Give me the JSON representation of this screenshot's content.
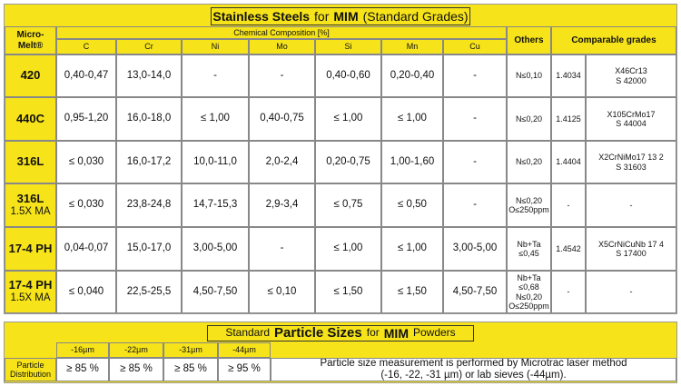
{
  "table1": {
    "title": {
      "main": "Stainless Steels",
      "for": "for",
      "brand": "MIM",
      "note": "(Standard Grades)"
    },
    "grade_header": "Micro-Melt®",
    "composition_header": "Chemical Composition [%]",
    "columns": [
      "C",
      "Cr",
      "Ni",
      "Mo",
      "Si",
      "Mn",
      "Cu",
      "Others",
      "Comparable grades"
    ],
    "rows": [
      {
        "grade": "420",
        "values": [
          "0,40-0,47",
          "13,0-14,0",
          "-",
          "-",
          "0,40-0,60",
          "0,20-0,40",
          "-"
        ],
        "others": [
          "N≤0,10"
        ],
        "code": "1.4034",
        "designation": [
          "X46Cr13",
          "S 42000"
        ]
      },
      {
        "grade": "440C",
        "values": [
          "0,95-1,20",
          "16,0-18,0",
          "≤ 1,00",
          "0,40-0,75",
          "≤ 1,00",
          "≤ 1,00",
          "-"
        ],
        "others": [
          "N≤0,20"
        ],
        "code": "1.4125",
        "designation": [
          "X105CrMo17",
          "S 44004"
        ]
      },
      {
        "grade": "316L",
        "values": [
          "≤ 0,030",
          "16,0-17,2",
          "10,0-11,0",
          "2,0-2,4",
          "0,20-0,75",
          "1,00-1,60",
          "-"
        ],
        "others": [
          "N≤0,20"
        ],
        "code": "1.4404",
        "designation": [
          "X2CrNiMo17 13 2",
          "S 31603"
        ]
      },
      {
        "grade": "316L",
        "sub": "1.5X MA",
        "values": [
          "≤ 0,030",
          "23,8-24,8",
          "14,7-15,3",
          "2,9-3,4",
          "≤ 0,75",
          "≤ 0,50",
          "-"
        ],
        "others": [
          "N≤0,20",
          "O≤250ppm"
        ],
        "code": "-",
        "designation": [
          "-"
        ]
      },
      {
        "grade": "17-4 PH",
        "values": [
          "0,04-0,07",
          "15,0-17,0",
          "3,00-5,00",
          "-",
          "≤ 1,00",
          "≤ 1,00",
          "3,00-5,00"
        ],
        "others": [
          "Nb+Ta",
          "≤0,45"
        ],
        "code": "1.4542",
        "designation": [
          "X5CrNiCuNb 17 4",
          "S 17400"
        ]
      },
      {
        "grade": "17-4 PH",
        "sub": "1.5X MA",
        "values": [
          "≤ 0,040",
          "22,5-25,5",
          "4,50-7,50",
          "≤ 0,10",
          "≤ 1,50",
          "≤ 1,50",
          "4,50-7,50"
        ],
        "others": [
          "Nb+Ta",
          "≤0,68",
          "N≤0,20",
          "O≤250ppm"
        ],
        "code": "-",
        "designation": [
          "-"
        ]
      }
    ]
  },
  "table2": {
    "title": {
      "pre": "Standard",
      "main": "Particle Sizes",
      "for": "for",
      "brand": "MIM",
      "post": "Powders"
    },
    "columns": [
      "-16µm",
      "-22µm",
      "-31µm",
      "-44µm"
    ],
    "row_label": "Particle Distribution",
    "values": [
      "≥ 85 %",
      "≥ 85 %",
      "≥ 85 %",
      "≥ 95 %"
    ],
    "note": [
      "Particle size measurement is performed by Microtrac laser method",
      "(-16, -22, -31 µm) or lab sieves (-44µm)."
    ]
  }
}
